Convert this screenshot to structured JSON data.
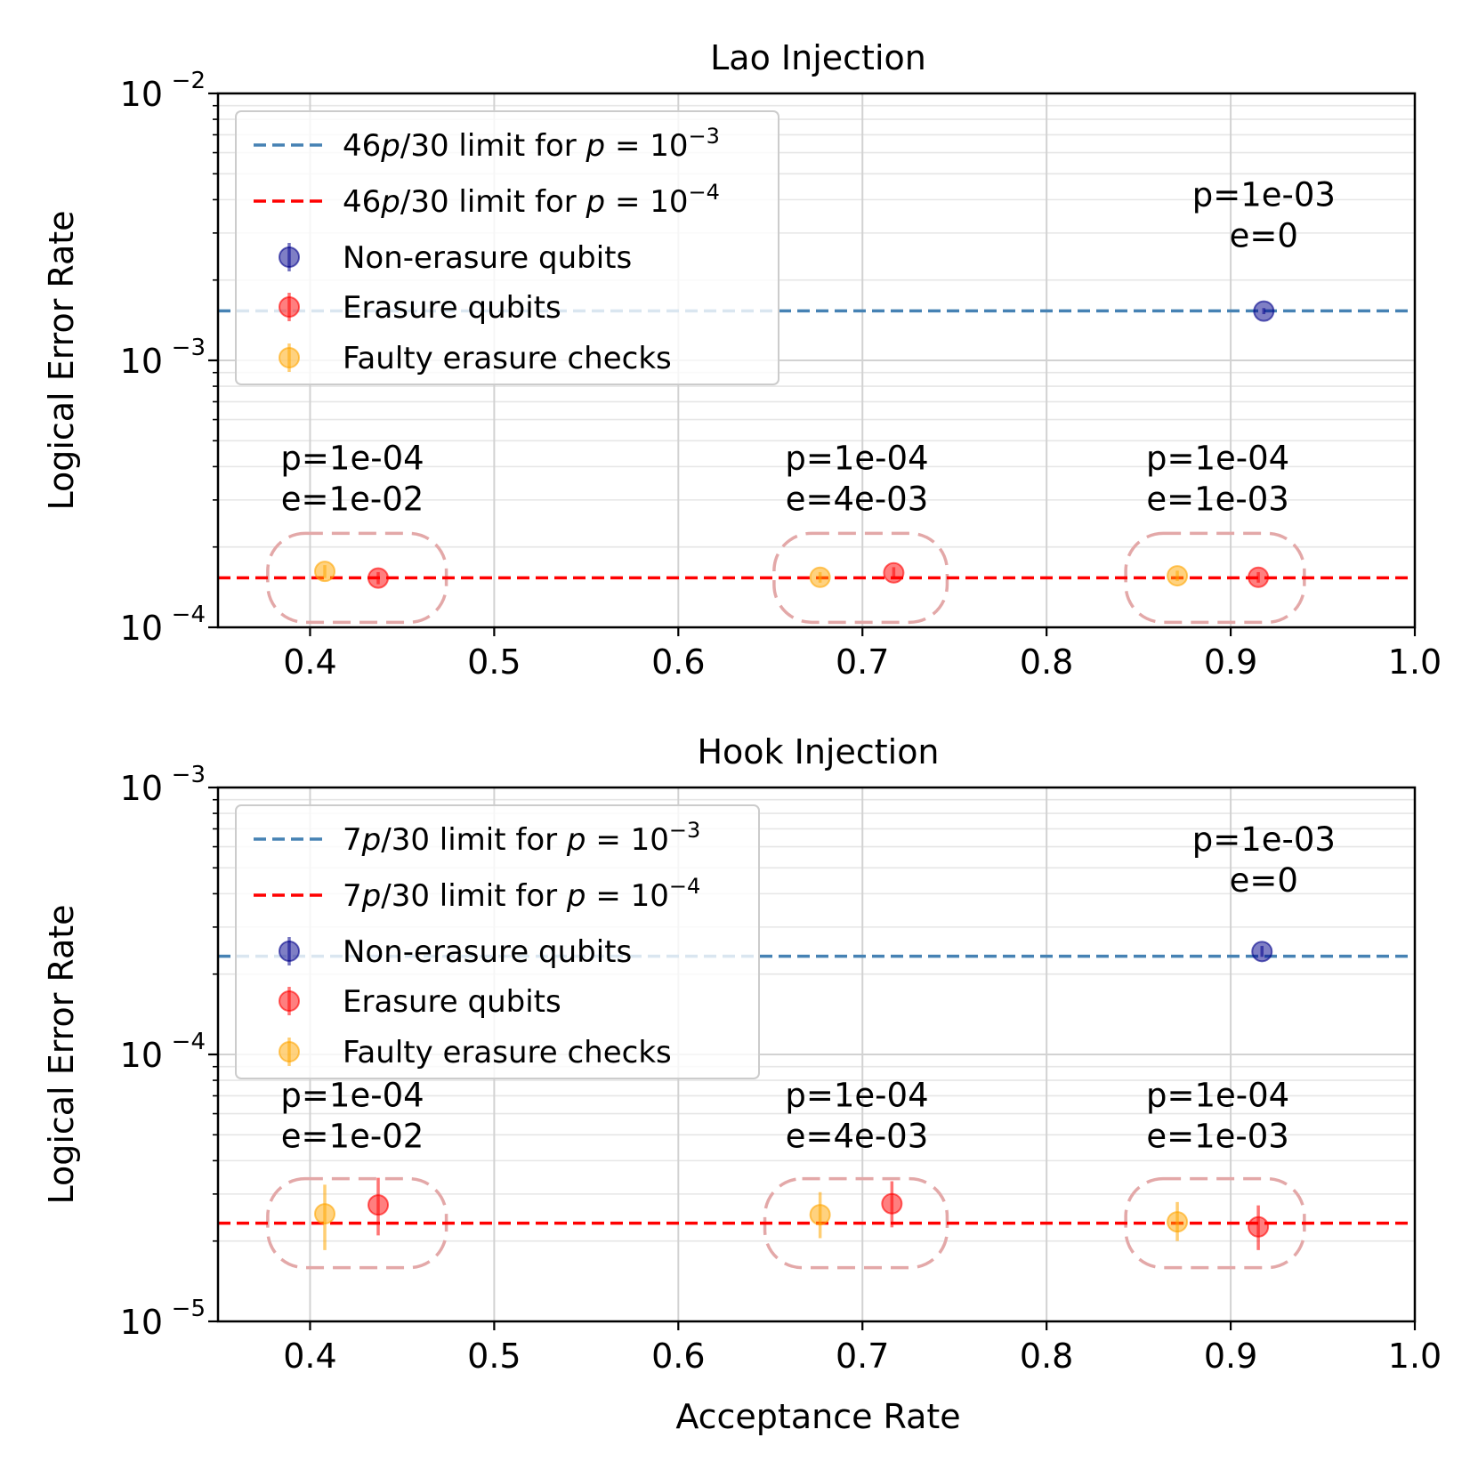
{
  "chart_data": [
    {
      "type": "scatter",
      "title": "Lao Injection",
      "xlabel": "",
      "ylabel": "Logical Error Rate",
      "xlim": [
        0.35,
        1.0
      ],
      "ylim": [
        0.0001,
        0.01
      ],
      "yscale": "log",
      "xticks": [
        "0.4",
        "0.5",
        "0.6",
        "0.7",
        "0.8",
        "0.9",
        "1.0"
      ],
      "yticks": [
        {
          "base": "10",
          "exp": "−2",
          "value": 0.01
        },
        {
          "base": "10",
          "exp": "−3",
          "value": 0.001
        },
        {
          "base": "10",
          "exp": "−4",
          "value": 0.0001
        }
      ],
      "grid": true,
      "legend_position": "top-left",
      "reference_lines": [
        {
          "name": "46p/30 limit for p = 10^-3",
          "legend_pre": "46",
          "legend_mid": "/30 limit for ",
          "legend_exp": "−3",
          "y": 0.001533,
          "color": "#4682b4"
        },
        {
          "name": "46p/30 limit for p = 10^-4",
          "legend_pre": "46",
          "legend_mid": "/30 limit for ",
          "legend_exp": "−4",
          "y": 0.0001533,
          "color": "#ff0000"
        }
      ],
      "series": [
        {
          "name": "Non-erasure qubits",
          "color": "#00008b",
          "points": [
            {
              "x": 0.918,
              "y": 0.00153,
              "err": [
                0.00149,
                0.00157
              ]
            }
          ]
        },
        {
          "name": "Erasure qubits",
          "color": "#ff0000",
          "points": [
            {
              "x": 0.437,
              "y": 0.000153,
              "err": [
                0.000145,
                0.000161
              ]
            },
            {
              "x": 0.717,
              "y": 0.00016,
              "err": [
                0.000152,
                0.000168
              ]
            },
            {
              "x": 0.915,
              "y": 0.000154,
              "err": [
                0.000147,
                0.000161
              ]
            }
          ]
        },
        {
          "name": "Faulty erasure checks",
          "color": "#ffa500",
          "points": [
            {
              "x": 0.408,
              "y": 0.000162,
              "err": [
                0.000153,
                0.000171
              ]
            },
            {
              "x": 0.677,
              "y": 0.000154,
              "err": [
                0.000147,
                0.000161
              ]
            },
            {
              "x": 0.871,
              "y": 0.000156,
              "err": [
                0.000149,
                0.000163
              ]
            }
          ]
        }
      ],
      "annotations": [
        {
          "line1": "p=1e-03",
          "line2": "e=0",
          "x": 0.918,
          "y": 0.0032
        },
        {
          "line1": "p=1e-04",
          "line2": "e=1e-02",
          "x": 0.423,
          "y": 0.00033
        },
        {
          "line1": "p=1e-04",
          "line2": "e=4e-03",
          "x": 0.697,
          "y": 0.00033
        },
        {
          "line1": "p=1e-04",
          "line2": "e=1e-03",
          "x": 0.893,
          "y": 0.00033
        }
      ],
      "groups": [
        {
          "x0": 0.377,
          "x1": 0.474
        },
        {
          "x0": 0.652,
          "x1": 0.746
        },
        {
          "x0": 0.843,
          "x1": 0.94
        }
      ]
    },
    {
      "type": "scatter",
      "title": "Hook Injection",
      "xlabel": "Acceptance Rate",
      "ylabel": "Logical Error Rate",
      "xlim": [
        0.35,
        1.0
      ],
      "ylim": [
        1e-05,
        0.001
      ],
      "yscale": "log",
      "xticks": [
        "0.4",
        "0.5",
        "0.6",
        "0.7",
        "0.8",
        "0.9",
        "1.0"
      ],
      "yticks": [
        {
          "base": "10",
          "exp": "−3",
          "value": 0.001
        },
        {
          "base": "10",
          "exp": "−4",
          "value": 0.0001
        },
        {
          "base": "10",
          "exp": "−5",
          "value": 1e-05
        }
      ],
      "grid": true,
      "legend_position": "top-left",
      "reference_lines": [
        {
          "name": "7p/30 limit for p = 10^-3",
          "legend_pre": "7",
          "legend_mid": "/30 limit for ",
          "legend_exp": "−3",
          "y": 0.0002333,
          "color": "#4682b4"
        },
        {
          "name": "7p/30 limit for p = 10^-4",
          "legend_pre": "7",
          "legend_mid": "/30 limit for ",
          "legend_exp": "−4",
          "y": 2.333e-05,
          "color": "#ff0000"
        }
      ],
      "series": [
        {
          "name": "Non-erasure qubits",
          "color": "#00008b",
          "points": [
            {
              "x": 0.917,
              "y": 0.000243,
              "err": [
                0.000232,
                0.000255
              ]
            }
          ]
        },
        {
          "name": "Erasure qubits",
          "color": "#ff0000",
          "points": [
            {
              "x": 0.437,
              "y": 2.73e-05,
              "err": [
                2.1e-05,
                3.45e-05
              ]
            },
            {
              "x": 0.716,
              "y": 2.76e-05,
              "err": [
                2.25e-05,
                3.35e-05
              ]
            },
            {
              "x": 0.915,
              "y": 2.26e-05,
              "err": [
                1.85e-05,
                2.72e-05
              ]
            }
          ]
        },
        {
          "name": "Faulty erasure checks",
          "color": "#ffa500",
          "points": [
            {
              "x": 0.408,
              "y": 2.53e-05,
              "err": [
                1.85e-05,
                3.25e-05
              ]
            },
            {
              "x": 0.677,
              "y": 2.51e-05,
              "err": [
                2.05e-05,
                3.05e-05
              ]
            },
            {
              "x": 0.871,
              "y": 2.36e-05,
              "err": [
                2e-05,
                2.8e-05
              ]
            }
          ]
        }
      ],
      "annotations": [
        {
          "line1": "p=1e-03",
          "line2": "e=0",
          "x": 0.918,
          "y": 0.00049
        },
        {
          "line1": "p=1e-04",
          "line2": "e=1e-02",
          "x": 0.423,
          "y": 5.4e-05
        },
        {
          "line1": "p=1e-04",
          "line2": "e=4e-03",
          "x": 0.697,
          "y": 5.4e-05
        },
        {
          "line1": "p=1e-04",
          "line2": "e=1e-03",
          "x": 0.893,
          "y": 5.4e-05
        }
      ],
      "groups": [
        {
          "x0": 0.377,
          "x1": 0.474
        },
        {
          "x0": 0.647,
          "x1": 0.746
        },
        {
          "x0": 0.843,
          "x1": 0.94
        }
      ]
    }
  ]
}
